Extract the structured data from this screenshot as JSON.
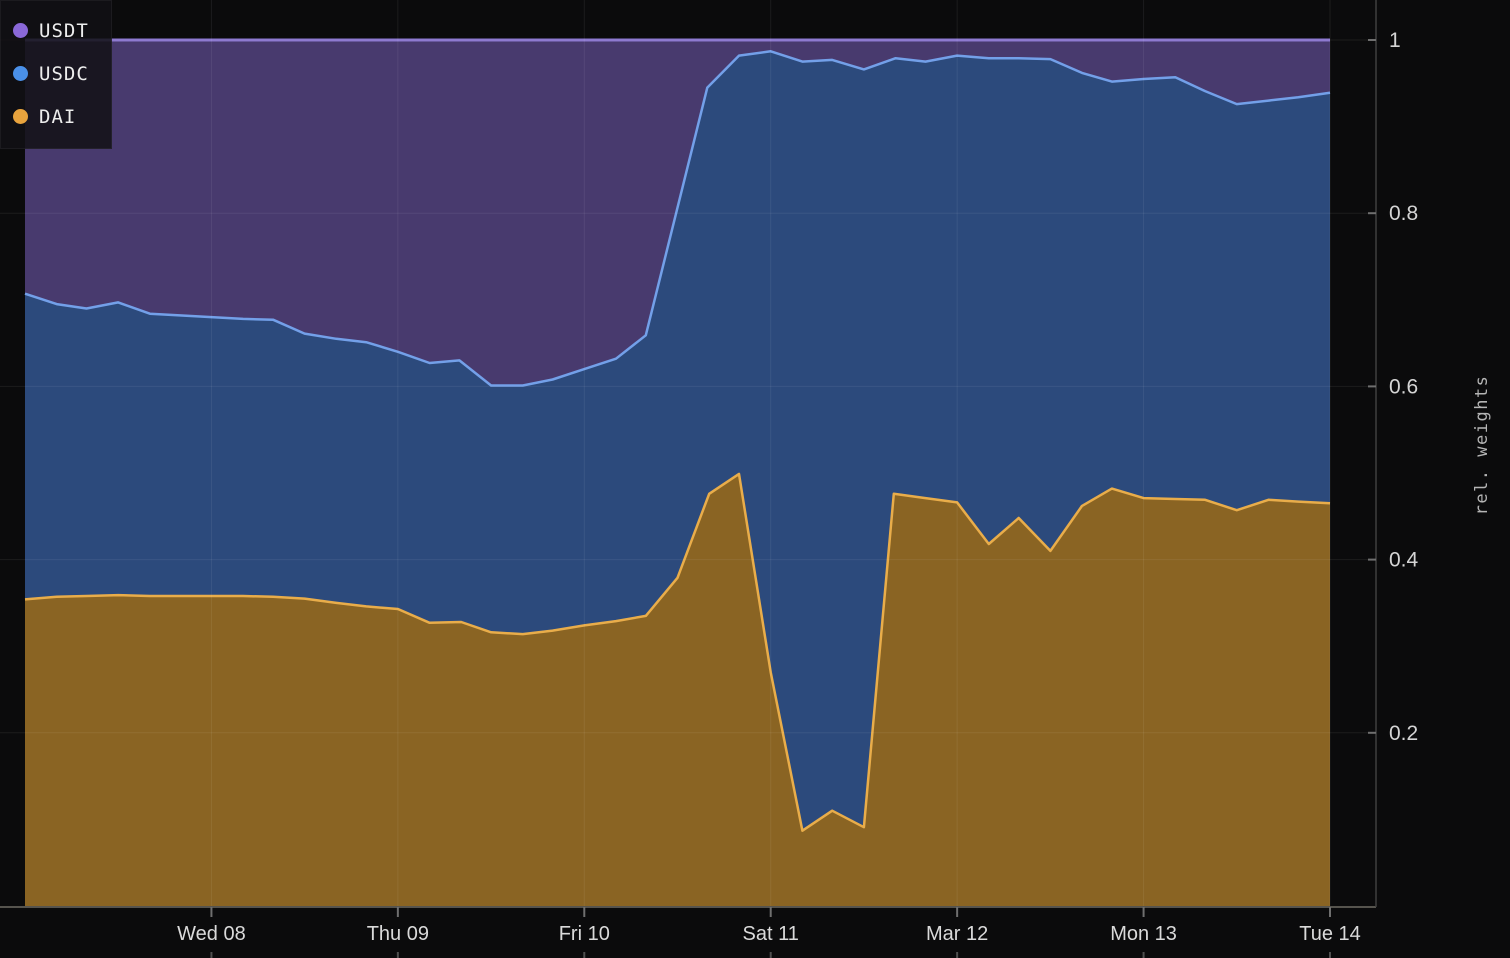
{
  "legend": {
    "position": "top-left",
    "items": [
      {
        "label": "USDT",
        "color": "#8a68d8"
      },
      {
        "label": "USDC",
        "color": "#4a90e8"
      },
      {
        "label": "DAI",
        "color": "#e8a33d"
      }
    ]
  },
  "theme": {
    "background": "#0b0b0c",
    "grid_color": "rgba(255,255,255,0.07)",
    "axis_line_color": "#56544e",
    "right_axis_line_color": "#3f3f3f",
    "tick_color": "#6f6f6f",
    "edge_tick_color": "#4f4f4f",
    "x_tick_label_color": "#dadada",
    "y_tick_label_color": "#d5d5d5",
    "axis_title_color": "#b5b5b5"
  },
  "chart_data": {
    "type": "area",
    "stacked": true,
    "title": "",
    "xlabel": "",
    "ylabel": "rel. weights",
    "grid": true,
    "legend_position": "top-left",
    "x_axis": {
      "unit": "days since Tue Mar 07",
      "range": [
        0,
        7
      ],
      "tick_positions": [
        1,
        2,
        3,
        4,
        5,
        6,
        7
      ],
      "tick_labels": [
        "Wed 08",
        "Thu 09",
        "Fri 10",
        "Sat 11",
        "Mar 12",
        "Mon 13",
        "Tue 14"
      ]
    },
    "y_axis": {
      "label": "rel. weights",
      "range": [
        0,
        1
      ],
      "tick_positions": [
        0.2,
        0.4,
        0.6,
        0.8,
        1
      ],
      "tick_labels": [
        "0.2",
        "0.4",
        "0.6",
        "0.8",
        "1"
      ]
    },
    "series": [
      {
        "name": "DAI",
        "role": "bottom-layer",
        "fill": "#8a6423",
        "stroke": "#e9ad4a",
        "note": "points are [day_offset, weight]; layer fills from 0 up to these values",
        "points": [
          [
            0.0,
            0.354
          ],
          [
            0.17,
            0.357
          ],
          [
            0.33,
            0.358
          ],
          [
            0.5,
            0.359
          ],
          [
            0.67,
            0.358
          ],
          [
            0.83,
            0.358
          ],
          [
            1.0,
            0.358
          ],
          [
            1.17,
            0.358
          ],
          [
            1.33,
            0.357
          ],
          [
            1.5,
            0.355
          ],
          [
            1.67,
            0.35
          ],
          [
            1.83,
            0.346
          ],
          [
            2.0,
            0.343
          ],
          [
            2.17,
            0.327
          ],
          [
            2.34,
            0.328
          ],
          [
            2.5,
            0.316
          ],
          [
            2.67,
            0.314
          ],
          [
            2.83,
            0.318
          ],
          [
            3.0,
            0.324
          ],
          [
            3.17,
            0.329
          ],
          [
            3.33,
            0.335
          ],
          [
            3.5,
            0.379
          ],
          [
            3.67,
            0.476
          ],
          [
            3.83,
            0.499
          ],
          [
            4.0,
            0.27
          ],
          [
            4.17,
            0.087
          ],
          [
            4.33,
            0.11
          ],
          [
            4.5,
            0.091
          ],
          [
            4.66,
            0.476
          ],
          [
            4.83,
            0.471
          ],
          [
            5.0,
            0.466
          ],
          [
            5.17,
            0.418
          ],
          [
            5.33,
            0.448
          ],
          [
            5.5,
            0.41
          ],
          [
            5.67,
            0.462
          ],
          [
            5.83,
            0.482
          ],
          [
            6.0,
            0.471
          ],
          [
            6.17,
            0.47
          ],
          [
            6.33,
            0.469
          ],
          [
            6.5,
            0.457
          ],
          [
            6.67,
            0.469
          ],
          [
            6.83,
            0.467
          ],
          [
            7.0,
            0.465
          ]
        ]
      },
      {
        "name": "USDC",
        "role": "middle-layer",
        "fill": "#2c4a7c",
        "stroke": "#73a0e9",
        "note": "cumulative top boundary = DAI + USDC weight",
        "cumulative_top_points": [
          [
            0.0,
            0.707
          ],
          [
            0.17,
            0.695
          ],
          [
            0.33,
            0.69
          ],
          [
            0.5,
            0.697
          ],
          [
            0.67,
            0.684
          ],
          [
            0.83,
            0.682
          ],
          [
            1.0,
            0.68
          ],
          [
            1.17,
            0.678
          ],
          [
            1.33,
            0.677
          ],
          [
            1.5,
            0.661
          ],
          [
            1.67,
            0.655
          ],
          [
            1.83,
            0.651
          ],
          [
            2.0,
            0.64
          ],
          [
            2.17,
            0.627
          ],
          [
            2.33,
            0.63
          ],
          [
            2.5,
            0.601
          ],
          [
            2.67,
            0.601
          ],
          [
            2.83,
            0.608
          ],
          [
            3.0,
            0.62
          ],
          [
            3.17,
            0.632
          ],
          [
            3.33,
            0.659
          ],
          [
            3.66,
            0.945
          ],
          [
            3.83,
            0.982
          ],
          [
            4.0,
            0.987
          ],
          [
            4.17,
            0.975
          ],
          [
            4.33,
            0.977
          ],
          [
            4.5,
            0.966
          ],
          [
            4.67,
            0.979
          ],
          [
            4.83,
            0.975
          ],
          [
            5.0,
            0.982
          ],
          [
            5.17,
            0.979
          ],
          [
            5.33,
            0.979
          ],
          [
            5.5,
            0.978
          ],
          [
            5.67,
            0.962
          ],
          [
            5.83,
            0.952
          ],
          [
            6.0,
            0.955
          ],
          [
            6.17,
            0.957
          ],
          [
            6.33,
            0.941
          ],
          [
            6.5,
            0.926
          ],
          [
            6.67,
            0.93
          ],
          [
            6.83,
            0.934
          ],
          [
            7.0,
            0.939
          ]
        ]
      },
      {
        "name": "USDT",
        "role": "top-layer",
        "fill": "#483a6e",
        "stroke": "#8a76cf",
        "note": "fills from the USDC cumulative boundary up to 1.0",
        "cumulative_top": 1.0
      }
    ]
  }
}
